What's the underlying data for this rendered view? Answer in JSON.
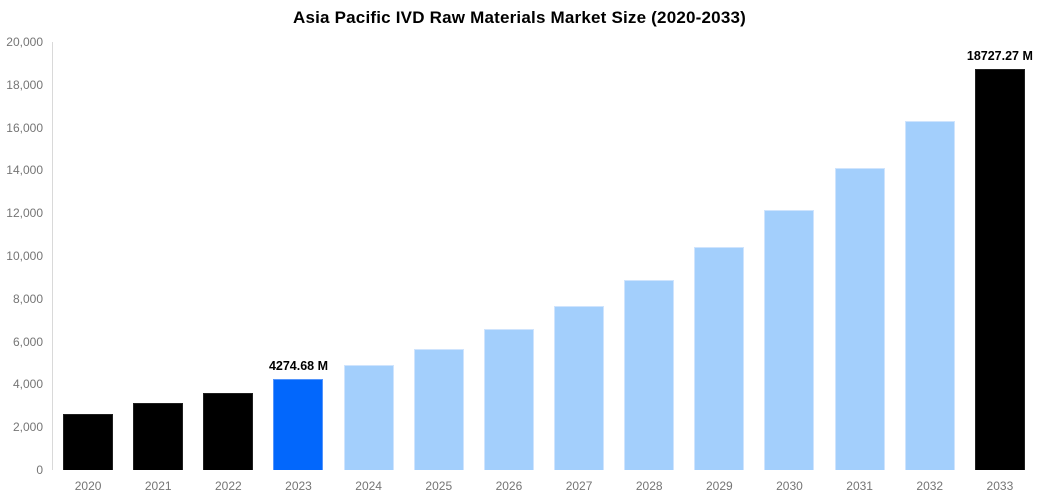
{
  "title": "Asia Pacific IVD Raw Materials Market Size (2020-2033)",
  "colors": {
    "bar_actual": "#000000",
    "bar_highlight": "#0267fc",
    "bar_projection": "#a3cffc",
    "border_actual": "#1f1f1f",
    "border_highlight": "#5595fb",
    "border_projection": "#cfe4fd",
    "axis_line": "#d9d9d9",
    "tick_label": "#757575",
    "value_label": "#000000",
    "background": "#ffffff"
  },
  "chart_data": {
    "type": "bar",
    "title": "Asia Pacific IVD Raw Materials Market Size (2020-2033)",
    "xlabel": "",
    "ylabel": "",
    "unit": "M",
    "categories": [
      "2020",
      "2021",
      "2022",
      "2023",
      "2024",
      "2025",
      "2026",
      "2027",
      "2028",
      "2029",
      "2030",
      "2031",
      "2032",
      "2033"
    ],
    "values": [
      2620,
      3140,
      3610,
      4274.68,
      4900,
      5650,
      6600,
      7650,
      8900,
      10400,
      12130,
      14100,
      16300,
      18727.27
    ],
    "bar_colors": [
      "#000000",
      "#000000",
      "#000000",
      "#0267fc",
      "#a3cffc",
      "#a3cffc",
      "#a3cffc",
      "#a3cffc",
      "#a3cffc",
      "#a3cffc",
      "#a3cffc",
      "#a3cffc",
      "#a3cffc",
      "#000000"
    ],
    "bar_border_colors": [
      "#1f1f1f",
      "#1f1f1f",
      "#1f1f1f",
      "#5595fb",
      "#cfe4fd",
      "#cfe4fd",
      "#cfe4fd",
      "#cfe4fd",
      "#cfe4fd",
      "#cfe4fd",
      "#cfe4fd",
      "#cfe4fd",
      "#cfe4fd",
      "#1f1f1f"
    ],
    "value_labels": [
      {
        "index": 3,
        "text": "4274.68 M"
      },
      {
        "index": 13,
        "text": "18727.27 M"
      }
    ],
    "ylim": [
      0,
      20000
    ],
    "ytick_step": 2000,
    "ytick_labels": [
      "0",
      "2,000",
      "4,000",
      "6,000",
      "8,000",
      "10,000",
      "12,000",
      "14,000",
      "16,000",
      "18,000",
      "20,000"
    ],
    "grid": "off",
    "legend": "none"
  }
}
